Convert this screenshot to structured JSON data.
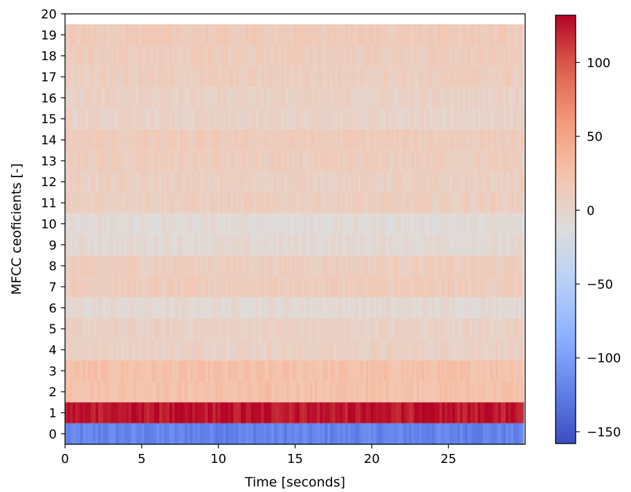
{
  "chart_data": {
    "type": "heatmap",
    "title": "",
    "xlabel": "Time [seconds]",
    "ylabel": "MFCC ceoficients [-]",
    "xlim": [
      0,
      30
    ],
    "ylim": [
      -0.5,
      20
    ],
    "x_ticks": [
      0,
      5,
      10,
      15,
      20,
      25
    ],
    "y_ticks": [
      0,
      1,
      2,
      3,
      4,
      5,
      6,
      7,
      8,
      9,
      10,
      11,
      12,
      13,
      14,
      15,
      16,
      17,
      18,
      19,
      20
    ],
    "coefficients": [
      0,
      1,
      2,
      3,
      4,
      5,
      6,
      7,
      8,
      9,
      10,
      11,
      12,
      13,
      14,
      15,
      16,
      17,
      18,
      19
    ],
    "coefficient_mean_values": [
      -120,
      125,
      25,
      25,
      6,
      5,
      -5,
      12,
      10,
      -5,
      -8,
      9,
      7,
      10,
      12,
      3,
      5,
      10,
      11,
      14
    ],
    "colormap": "coolwarm",
    "colorbar": {
      "range": [
        -158,
        132
      ],
      "ticks": [
        100,
        50,
        0,
        -50,
        -100,
        -150
      ],
      "tick_labels": [
        "100",
        "50",
        "0",
        "−50",
        "−100",
        "−150"
      ]
    },
    "grid": false
  }
}
